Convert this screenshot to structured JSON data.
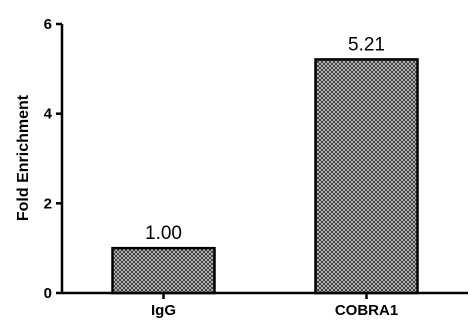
{
  "chart_data": {
    "type": "bar",
    "categories": [
      "IgG",
      "COBRA1"
    ],
    "values": [
      1.0,
      5.21
    ],
    "data_labels": [
      "1.00",
      "5.21"
    ],
    "title": "",
    "xlabel": "",
    "ylabel": "Fold Enrichment",
    "ylim": [
      0,
      6
    ],
    "yticks": [
      0,
      2,
      4,
      6
    ],
    "ytick_labels": [
      "0",
      "2",
      "4",
      "6"
    ],
    "grid": false,
    "legend": "none",
    "bar_fill": "crosshatch",
    "colors": {
      "bar_stroke": "#000000",
      "hatch_light": "#d9d9d9",
      "hatch_dark": "#3a3a3a"
    }
  }
}
